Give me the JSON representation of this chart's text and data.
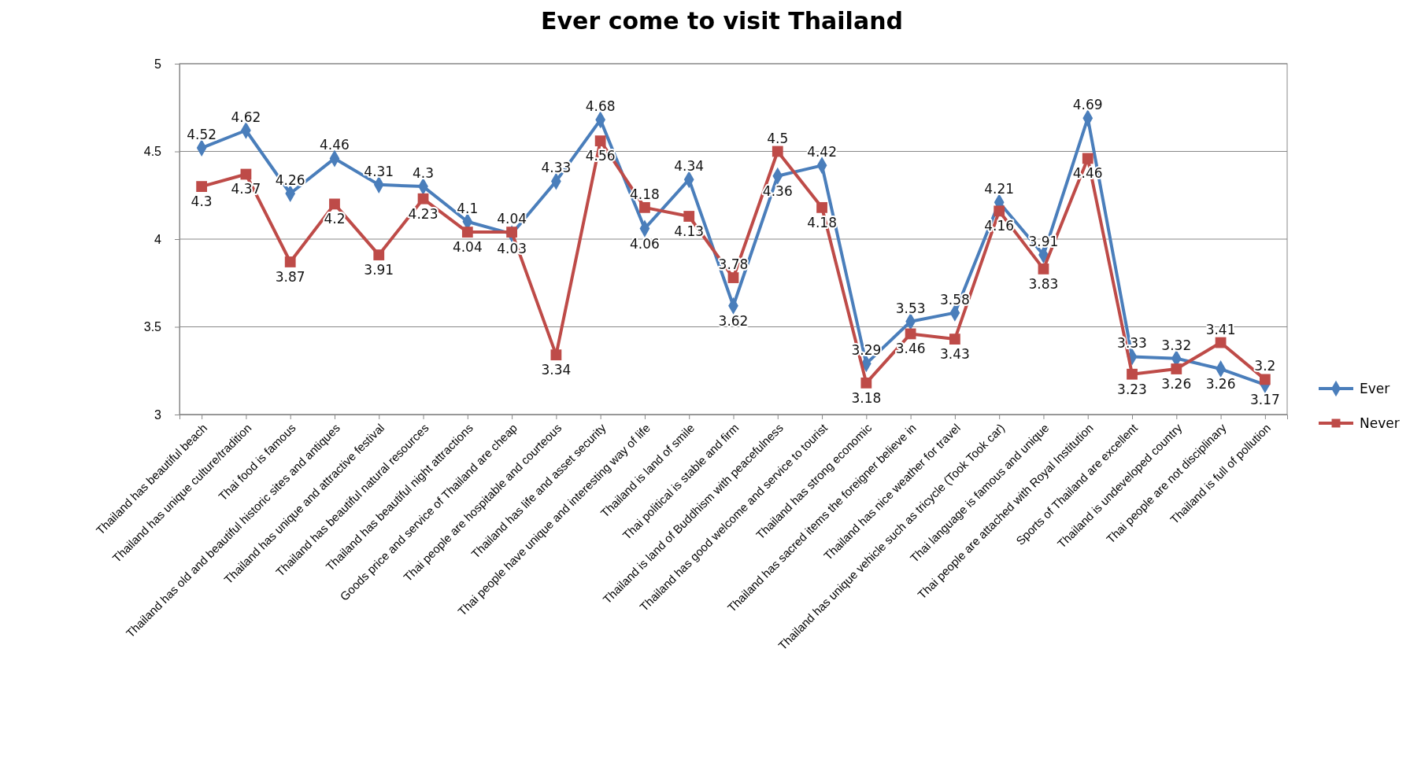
{
  "chart_data": {
    "type": "line",
    "title": "Ever come to visit Thailand",
    "categories": [
      "Thailand has beautiful beach",
      "Thailand has unique culture/tradition",
      "Thai food is famous",
      "Thailand has old and beautiful historic sites and antiques",
      "Thailand has unique and attractive festival",
      "Thailand has beautiful natural resources",
      "Thailand has beautiful night attractions",
      "Goods price and service of Thailand are cheap",
      "Thai people are hospitable and courteous",
      "Thailand has life and asset security",
      "Thai people have unique and interesting way of life",
      "Thailand is land of smile",
      "Thai political is stable and firm",
      "Thailand is land of Buddhism with peacefulness",
      "Thailand has good welcome and service to tourist",
      "Thailand has strong economic",
      "Thailand has sacred items the foreigner believe in",
      "Thailand has nice weather for travel",
      "Thailand has unique vehicle such as tricycle (Took Took car)",
      "Thai language is famous and unique",
      "Thai people are attached with Royal Institution",
      "Sports of Thailand are excellent",
      "Thailand is undeveloped country",
      "Thai people are not disciplinary",
      "Thailand is full of pollution"
    ],
    "series": [
      {
        "name": "Ever",
        "color": "#4a7ebb",
        "marker": "diamond",
        "values": [
          4.52,
          4.62,
          4.26,
          4.46,
          4.31,
          4.3,
          4.1,
          4.03,
          4.33,
          4.68,
          4.06,
          4.34,
          3.62,
          4.36,
          4.42,
          3.29,
          3.53,
          3.58,
          4.21,
          3.91,
          4.69,
          3.33,
          3.32,
          3.26,
          3.17
        ]
      },
      {
        "name": "Never",
        "color": "#be4b48",
        "marker": "square",
        "values": [
          4.3,
          4.37,
          3.87,
          4.2,
          3.91,
          4.23,
          4.04,
          4.04,
          3.34,
          4.56,
          4.18,
          4.13,
          3.78,
          4.5,
          4.18,
          3.18,
          3.46,
          3.43,
          4.16,
          3.83,
          4.46,
          3.23,
          3.26,
          3.41,
          3.2
        ]
      }
    ],
    "ylim": [
      3,
      5
    ],
    "yticks": [
      3,
      3.5,
      4,
      4.5,
      5
    ],
    "grid": "y",
    "legend": "right",
    "data_labels": true
  }
}
